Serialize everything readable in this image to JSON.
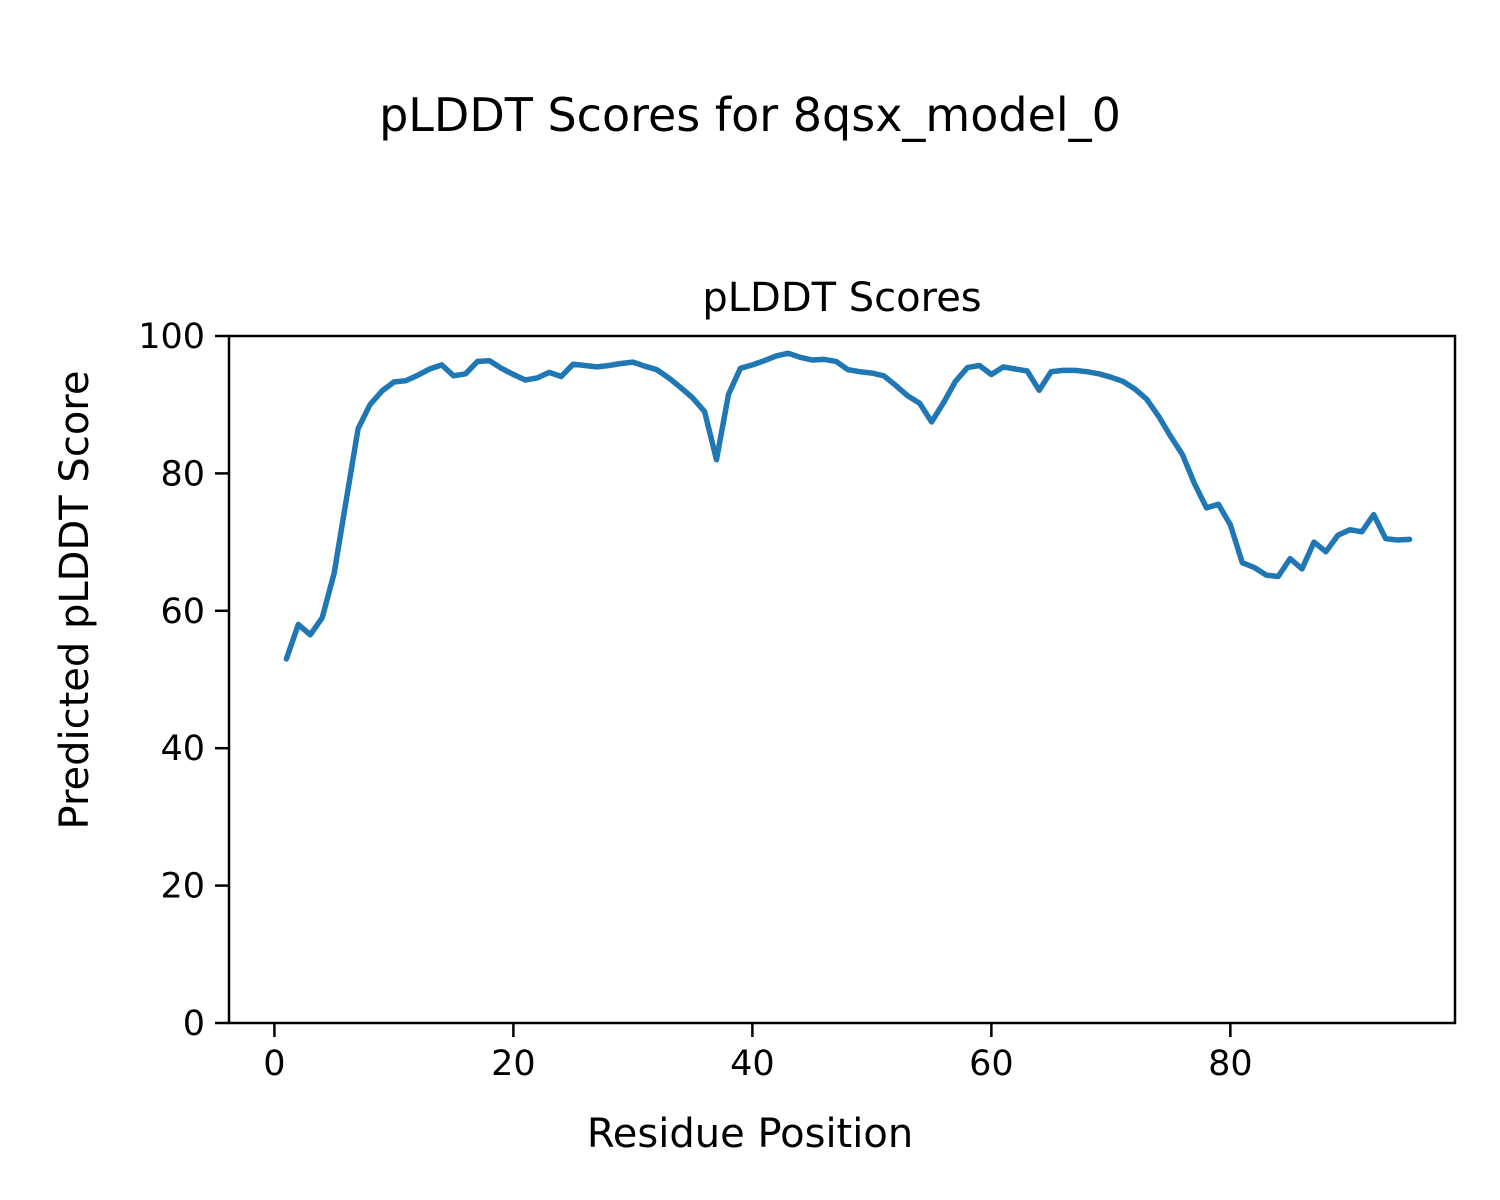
{
  "figure": {
    "suptitle": "pLDDT Scores for 8qsx_model_0",
    "background_color": "#ffffff",
    "text_color": "#000000"
  },
  "chart_data": {
    "type": "line",
    "title": "pLDDT Scores",
    "xlabel": "Residue Position",
    "ylabel": "Predicted pLDDT Score",
    "xlim": [
      -3.8,
      98.8
    ],
    "ylim": [
      0,
      100
    ],
    "xticks": [
      0,
      20,
      40,
      60,
      80
    ],
    "yticks": [
      0,
      20,
      40,
      60,
      80,
      100
    ],
    "grid": false,
    "legend": "none",
    "frame_color": "#000000",
    "series": [
      {
        "name": "pLDDT",
        "color": "#1f77b4",
        "x": [
          1,
          2,
          3,
          4,
          5,
          6,
          7,
          8,
          9,
          10,
          11,
          12,
          13,
          14,
          15,
          16,
          17,
          18,
          19,
          20,
          21,
          22,
          23,
          24,
          25,
          26,
          27,
          28,
          29,
          30,
          31,
          32,
          33,
          34,
          35,
          36,
          37,
          38,
          39,
          40,
          41,
          42,
          43,
          44,
          45,
          46,
          47,
          48,
          49,
          50,
          51,
          52,
          53,
          54,
          55,
          56,
          57,
          58,
          59,
          60,
          61,
          62,
          63,
          64,
          65,
          66,
          67,
          68,
          69,
          70,
          71,
          72,
          73,
          74,
          75,
          76,
          77,
          78,
          79,
          80,
          81,
          82,
          83,
          84,
          85,
          86,
          87,
          88,
          89,
          90,
          91,
          92,
          93,
          94,
          95
        ],
        "y": [
          53.0,
          58.0,
          56.5,
          59.0,
          65.5,
          76.0,
          86.5,
          90.0,
          92.0,
          93.3,
          93.5,
          94.3,
          95.2,
          95.8,
          94.2,
          94.5,
          96.3,
          96.4,
          95.3,
          94.4,
          93.6,
          93.9,
          94.7,
          94.1,
          95.9,
          95.7,
          95.5,
          95.7,
          96.0,
          96.2,
          95.6,
          95.1,
          93.9,
          92.5,
          91.0,
          89.0,
          82.0,
          91.5,
          95.3,
          95.8,
          96.4,
          97.1,
          97.5,
          96.9,
          96.5,
          96.6,
          96.3,
          95.1,
          94.8,
          94.6,
          94.2,
          92.8,
          91.3,
          90.2,
          87.5,
          90.3,
          93.4,
          95.4,
          95.7,
          94.4,
          95.5,
          95.2,
          94.9,
          92.1,
          94.8,
          95.0,
          95.0,
          94.8,
          94.5,
          94.0,
          93.4,
          92.3,
          90.8,
          88.3,
          85.4,
          82.7,
          78.5,
          75.0,
          75.5,
          72.5,
          67.0,
          66.3,
          65.2,
          65.0,
          67.6,
          66.1,
          70.0,
          68.6,
          71.0,
          71.8,
          71.5,
          74.0,
          70.5,
          70.3,
          70.4
        ]
      }
    ]
  }
}
